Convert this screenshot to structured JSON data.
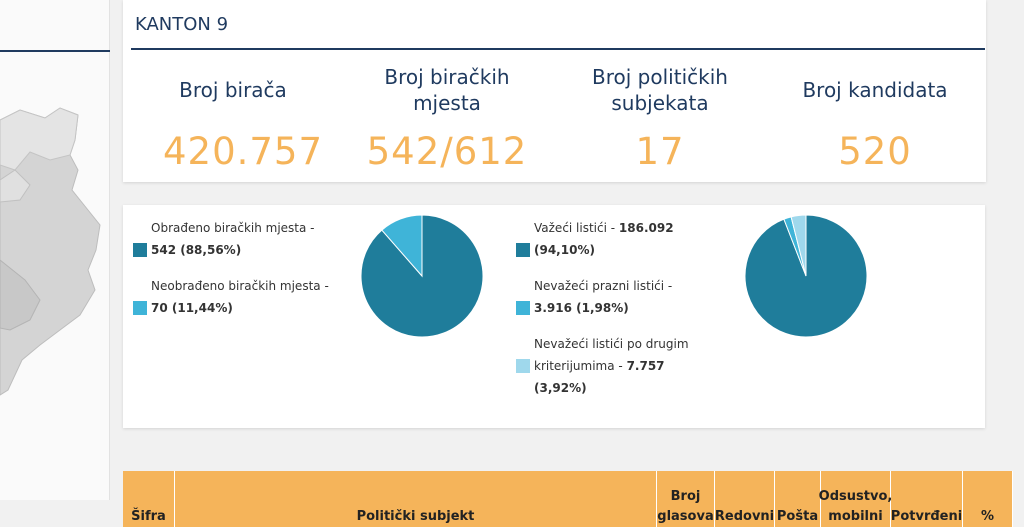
{
  "kanton": {
    "title": "KANTON 9"
  },
  "stats": [
    {
      "label": "Broj birača",
      "value": "420.757"
    },
    {
      "label": "Broj biračkih mjesta",
      "value": "542/612"
    },
    {
      "label": "Broj političkih subjekata",
      "value": "17"
    },
    {
      "label": "Broj kandidata",
      "value": "520"
    }
  ],
  "colors": {
    "dark_teal": "#1f7d9b",
    "light_blue": "#3fb4d8",
    "pale_blue": "#9fd8ec",
    "navy": "#1f3a5f",
    "orange": "#f5b45a"
  },
  "pie1": {
    "legend": [
      {
        "label": "Obrađeno biračkih mjesta -",
        "value": "542 (88,56%)",
        "color": "#1f7d9b"
      },
      {
        "label": "Neobrađeno biračkih mjesta -",
        "value": "70 (11,44%)",
        "color": "#3fb4d8"
      }
    ],
    "fractions": [
      0.8856,
      0.1144
    ]
  },
  "pie2": {
    "legend": [
      {
        "label": "Važeći listići -",
        "value": "186.092",
        "value2": "(94,10%)",
        "color": "#1f7d9b"
      },
      {
        "label": "Nevažeći prazni listići -",
        "value": "3.916 (1,98%)",
        "color": "#3fb4d8"
      },
      {
        "label": "Nevažeći listići po drugim",
        "label2": "kriterijumima -",
        "value": "7.757",
        "value2": "(3,92%)",
        "color": "#9fd8ec"
      }
    ],
    "fractions": [
      0.941,
      0.0198,
      0.0392
    ]
  },
  "table": {
    "headers": [
      "Šifra",
      "Politički subjekt",
      "Broj glasova",
      "Redovni",
      "Pošta",
      "Odsustvo, mobilni",
      "Potvrđeni",
      "%"
    ]
  }
}
